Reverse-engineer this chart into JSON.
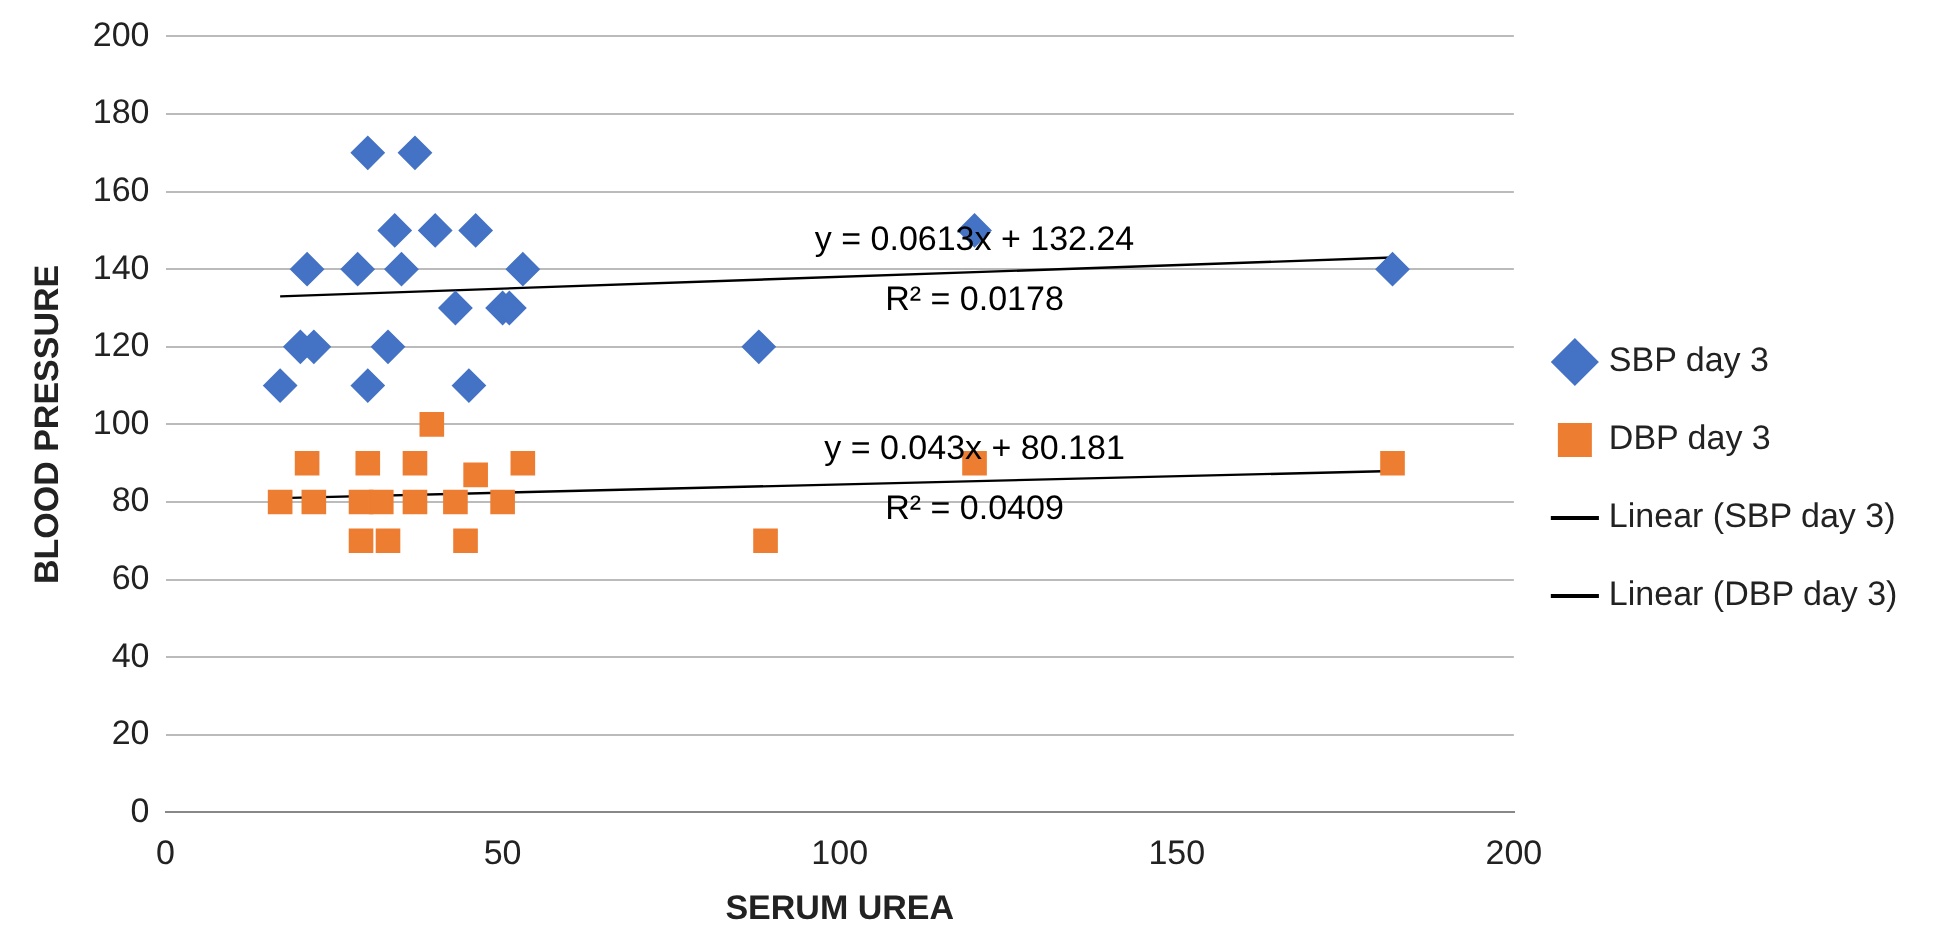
{
  "chart_data": {
    "type": "scatter",
    "xlabel": "SERUM UREA",
    "ylabel": "BLOOD PRESSURE",
    "xlim": [
      0,
      200
    ],
    "xticks": [
      0,
      50,
      100,
      150,
      200
    ],
    "ylim": [
      0,
      200
    ],
    "yticks": [
      0,
      20,
      40,
      60,
      80,
      100,
      120,
      140,
      160,
      180,
      200
    ],
    "grid": "y",
    "legend": "right",
    "series": [
      {
        "name": "SBP day 3",
        "color": "#4472c4",
        "marker": "diamond",
        "x": [
          17,
          20,
          21,
          22,
          28.5,
          30,
          30,
          33,
          34,
          35,
          37,
          40,
          43,
          46,
          45,
          50,
          51,
          53,
          88,
          120,
          182
        ],
        "values": [
          110,
          120,
          140,
          120,
          140,
          170,
          110,
          120,
          150,
          140,
          170,
          150,
          130,
          150,
          110,
          130,
          130,
          140,
          120,
          150,
          140
        ]
      },
      {
        "name": "DBP day 3",
        "color": "#ed7d31",
        "marker": "square",
        "x": [
          17,
          22,
          21,
          30,
          37,
          53,
          39.5,
          46,
          29,
          32,
          37,
          43,
          50,
          29,
          33,
          44.5,
          89,
          120,
          182
        ],
        "values": [
          80,
          80,
          90,
          90,
          90,
          90,
          100,
          87,
          80,
          80,
          80,
          80,
          80,
          70,
          70,
          70,
          70,
          90,
          90
        ]
      },
      {
        "name": "Linear (SBP day 3)",
        "type": "line",
        "color": "#000000",
        "marker": "none",
        "x": [
          17,
          182
        ],
        "values": [
          133,
          143
        ]
      },
      {
        "name": "Linear (DBP day 3)",
        "type": "line",
        "color": "#000000",
        "marker": "none",
        "x": [
          17,
          182
        ],
        "values": [
          81,
          88
        ]
      }
    ],
    "annotations": [
      "y = 0.0613x + 132.24",
      "R² = 0.0178",
      "y = 0.043x + 80.181",
      "R² = 0.0409"
    ]
  }
}
